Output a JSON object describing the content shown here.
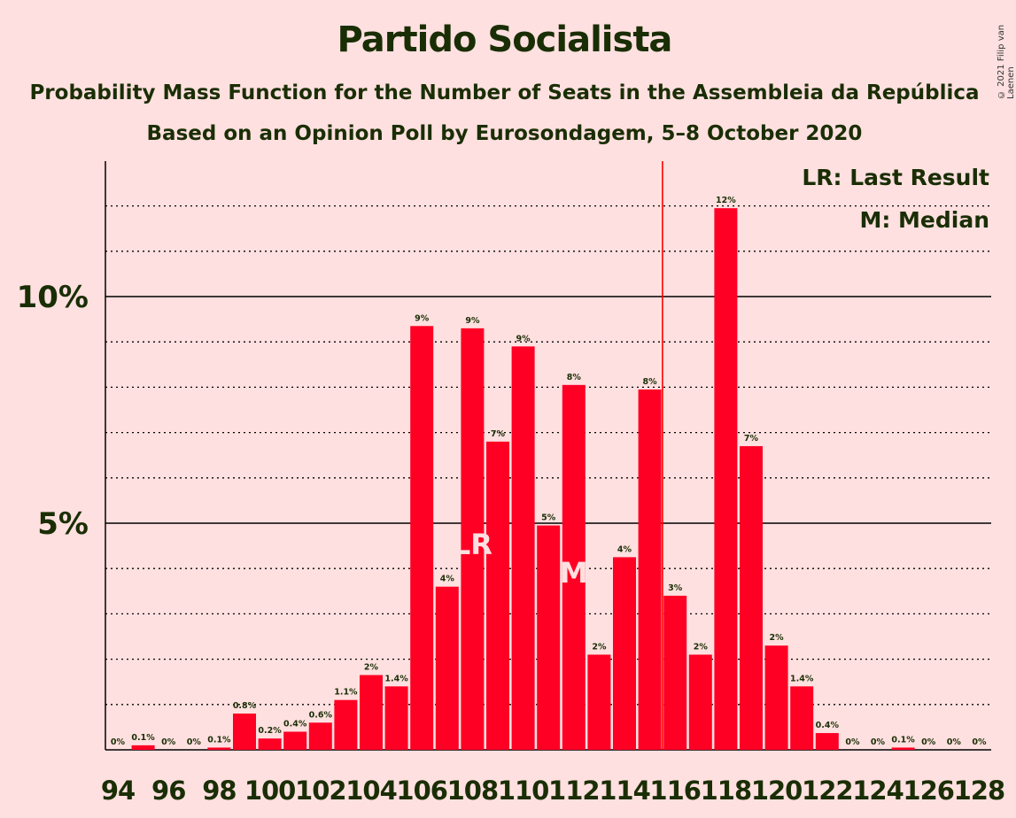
{
  "title": "Partido Socialista",
  "subtitle_1": "Probability Mass Function for the Number of Seats in the Assembleia da República",
  "subtitle_2": "Based on an Opinion Poll by Eurosondagem, 5–8 October 2020",
  "copyright": "© 2021 Filip van Laenen",
  "legend": {
    "last_result": "LR: Last Result",
    "median": "M: Median"
  },
  "colors": {
    "background": "#FFE0E0",
    "bar": "#FF0025",
    "text": "#1a2e05",
    "marker_line": "#FF0000",
    "marker_text": "#FFE0E0"
  },
  "chart_data": {
    "type": "bar",
    "categories": [
      94,
      95,
      96,
      97,
      98,
      99,
      100,
      101,
      102,
      103,
      104,
      105,
      106,
      107,
      108,
      109,
      110,
      111,
      112,
      113,
      114,
      115,
      116,
      117,
      118,
      119,
      120,
      121,
      122,
      123,
      124,
      125,
      126,
      127,
      128
    ],
    "values": [
      0,
      0.1,
      0,
      0,
      0.05,
      0.8,
      0.25,
      0.4,
      0.6,
      1.1,
      1.65,
      1.4,
      9.35,
      3.6,
      9.3,
      6.8,
      8.9,
      4.95,
      8.05,
      2.1,
      4.25,
      7.95,
      3.4,
      2.1,
      11.95,
      6.7,
      2.3,
      1.4,
      0.37,
      0,
      0,
      0.05,
      0,
      0,
      0
    ],
    "data_labels": [
      "0%",
      "0.1%",
      "0%",
      "0%",
      "0.1%",
      "0.8%",
      "0.2%",
      "0.4%",
      "0.6%",
      "1.1%",
      "2%",
      "1.4%",
      "9%",
      "4%",
      "9%",
      "7%",
      "9%",
      "5%",
      "8%",
      "2%",
      "4%",
      "8%",
      "3%",
      "2%",
      "12%",
      "7%",
      "2%",
      "1.4%",
      "0.4%",
      "0%",
      "0%",
      "0.1%",
      "0%",
      "0%",
      "0%"
    ],
    "x_tick_labels": [
      "94",
      "96",
      "98",
      "100",
      "102",
      "104",
      "106",
      "108",
      "110",
      "112",
      "114",
      "116",
      "118",
      "120",
      "122",
      "124",
      "126",
      "128"
    ],
    "y_tick_labels": [
      {
        "value": 5,
        "label": "5%"
      },
      {
        "value": 10,
        "label": "10%"
      }
    ],
    "ylim": [
      0,
      13
    ],
    "last_result": {
      "seat": 108,
      "label": "LR"
    },
    "median": {
      "seat": 112,
      "label": "M"
    },
    "majority_line": 115.5,
    "grid": "dotted every 1%, solid at 5% and 10%",
    "legend_position": "top-right"
  }
}
